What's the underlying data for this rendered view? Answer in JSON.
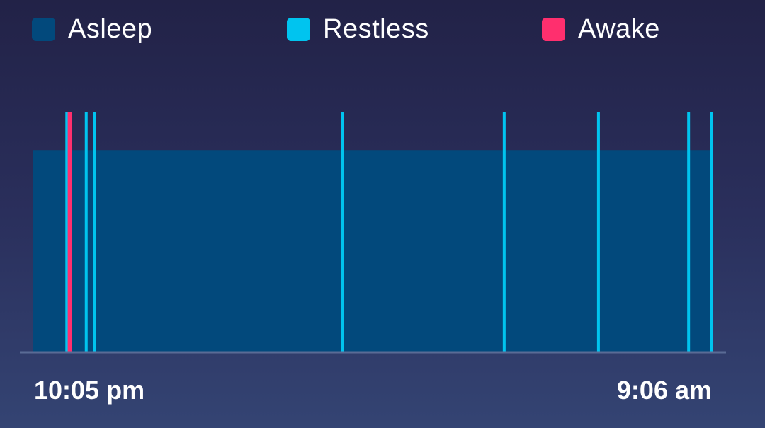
{
  "chart_data": {
    "type": "sleep-stages",
    "title": "",
    "legend": [
      {
        "key": "asleep",
        "label": "Asleep",
        "color": "#02497c"
      },
      {
        "key": "restless",
        "label": "Restless",
        "color": "#00c4ef"
      },
      {
        "key": "awake",
        "label": "Awake",
        "color": "#ff2f6e"
      }
    ],
    "start_label": "10:05 pm",
    "end_label": "9:06 am",
    "start_minutes": 0,
    "end_minutes": 661,
    "asleep_segment": {
      "start": 0,
      "end": 661,
      "level": 0.84
    },
    "events": [
      {
        "type": "restless",
        "time": 32
      },
      {
        "type": "awake",
        "time": 35
      },
      {
        "type": "restless",
        "time": 51
      },
      {
        "type": "restless",
        "time": 59
      },
      {
        "type": "restless",
        "time": 301
      },
      {
        "type": "restless",
        "time": 459
      },
      {
        "type": "restless",
        "time": 551
      },
      {
        "type": "restless",
        "time": 639
      },
      {
        "type": "restless",
        "time": 661
      }
    ]
  }
}
